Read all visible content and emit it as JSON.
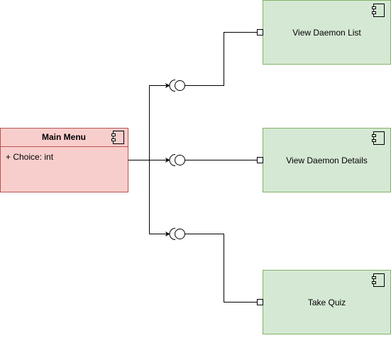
{
  "diagram": {
    "main_component": {
      "title": "Main Menu",
      "attribute": "+ Choice: int",
      "fill": "#f8cecc",
      "stroke": "#b85450"
    },
    "components": [
      {
        "label": "View Daemon List"
      },
      {
        "label": "View Daemon Details"
      },
      {
        "label": "Take Quiz"
      }
    ],
    "component_fill": "#d5e8d4",
    "component_stroke": "#82b366",
    "edge_color": "#000000",
    "icon": "component-icon"
  }
}
